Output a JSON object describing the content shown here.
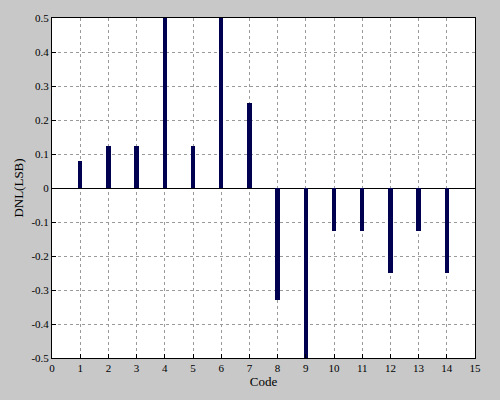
{
  "chart_data": {
    "type": "bar",
    "x_label": "Code",
    "y_label": "DNL(LSB)",
    "x": [
      1,
      2,
      3,
      4,
      5,
      6,
      7,
      8,
      9,
      10,
      11,
      12,
      13,
      14
    ],
    "values": [
      0.08,
      0.125,
      0.125,
      0.5,
      0.125,
      0.5,
      0.25,
      -0.33,
      -0.5,
      -0.125,
      -0.125,
      -0.25,
      -0.125,
      -0.25
    ],
    "color": "#000050",
    "xlim": [
      0,
      15
    ],
    "xticks": [
      0,
      1,
      2,
      3,
      4,
      5,
      6,
      7,
      8,
      9,
      10,
      11,
      12,
      13,
      14,
      15
    ],
    "ylim": [
      -0.5,
      0.5
    ],
    "yticks": [
      -0.5,
      -0.4,
      -0.3,
      -0.2,
      -0.1,
      0,
      0.1,
      0.2,
      0.3,
      0.4,
      0.5
    ],
    "grid": true
  }
}
